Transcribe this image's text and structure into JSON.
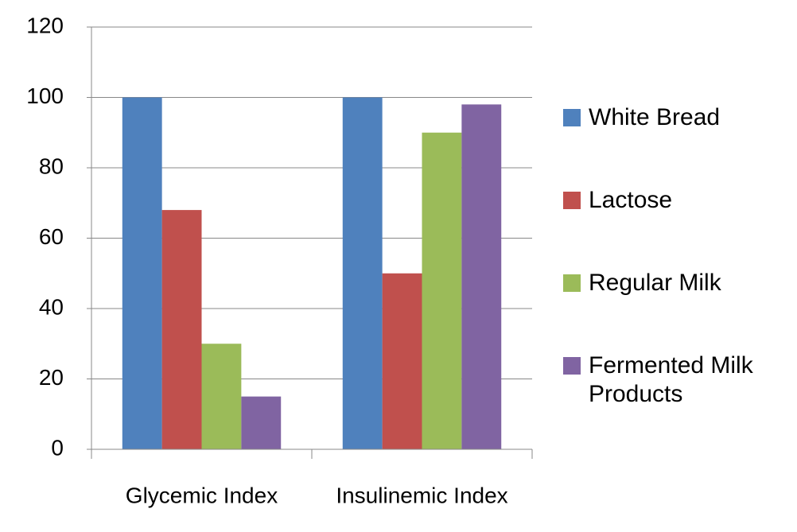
{
  "chart_data": {
    "type": "bar",
    "categories": [
      "Glycemic Index",
      "Insulinemic Index"
    ],
    "series": [
      {
        "name": "White Bread",
        "color": "#4f81bd",
        "values": [
          100,
          100
        ]
      },
      {
        "name": "Lactose",
        "color": "#c0504d",
        "values": [
          68,
          50
        ]
      },
      {
        "name": "Regular Milk",
        "color": "#9bbb59",
        "values": [
          30,
          90
        ]
      },
      {
        "name": "Fermented Milk Products",
        "color": "#8064a2",
        "values": [
          15,
          98
        ]
      }
    ],
    "ylim": [
      0,
      120
    ],
    "yticks": [
      0,
      20,
      40,
      60,
      80,
      100,
      120
    ],
    "grid": true,
    "legend": "right"
  }
}
